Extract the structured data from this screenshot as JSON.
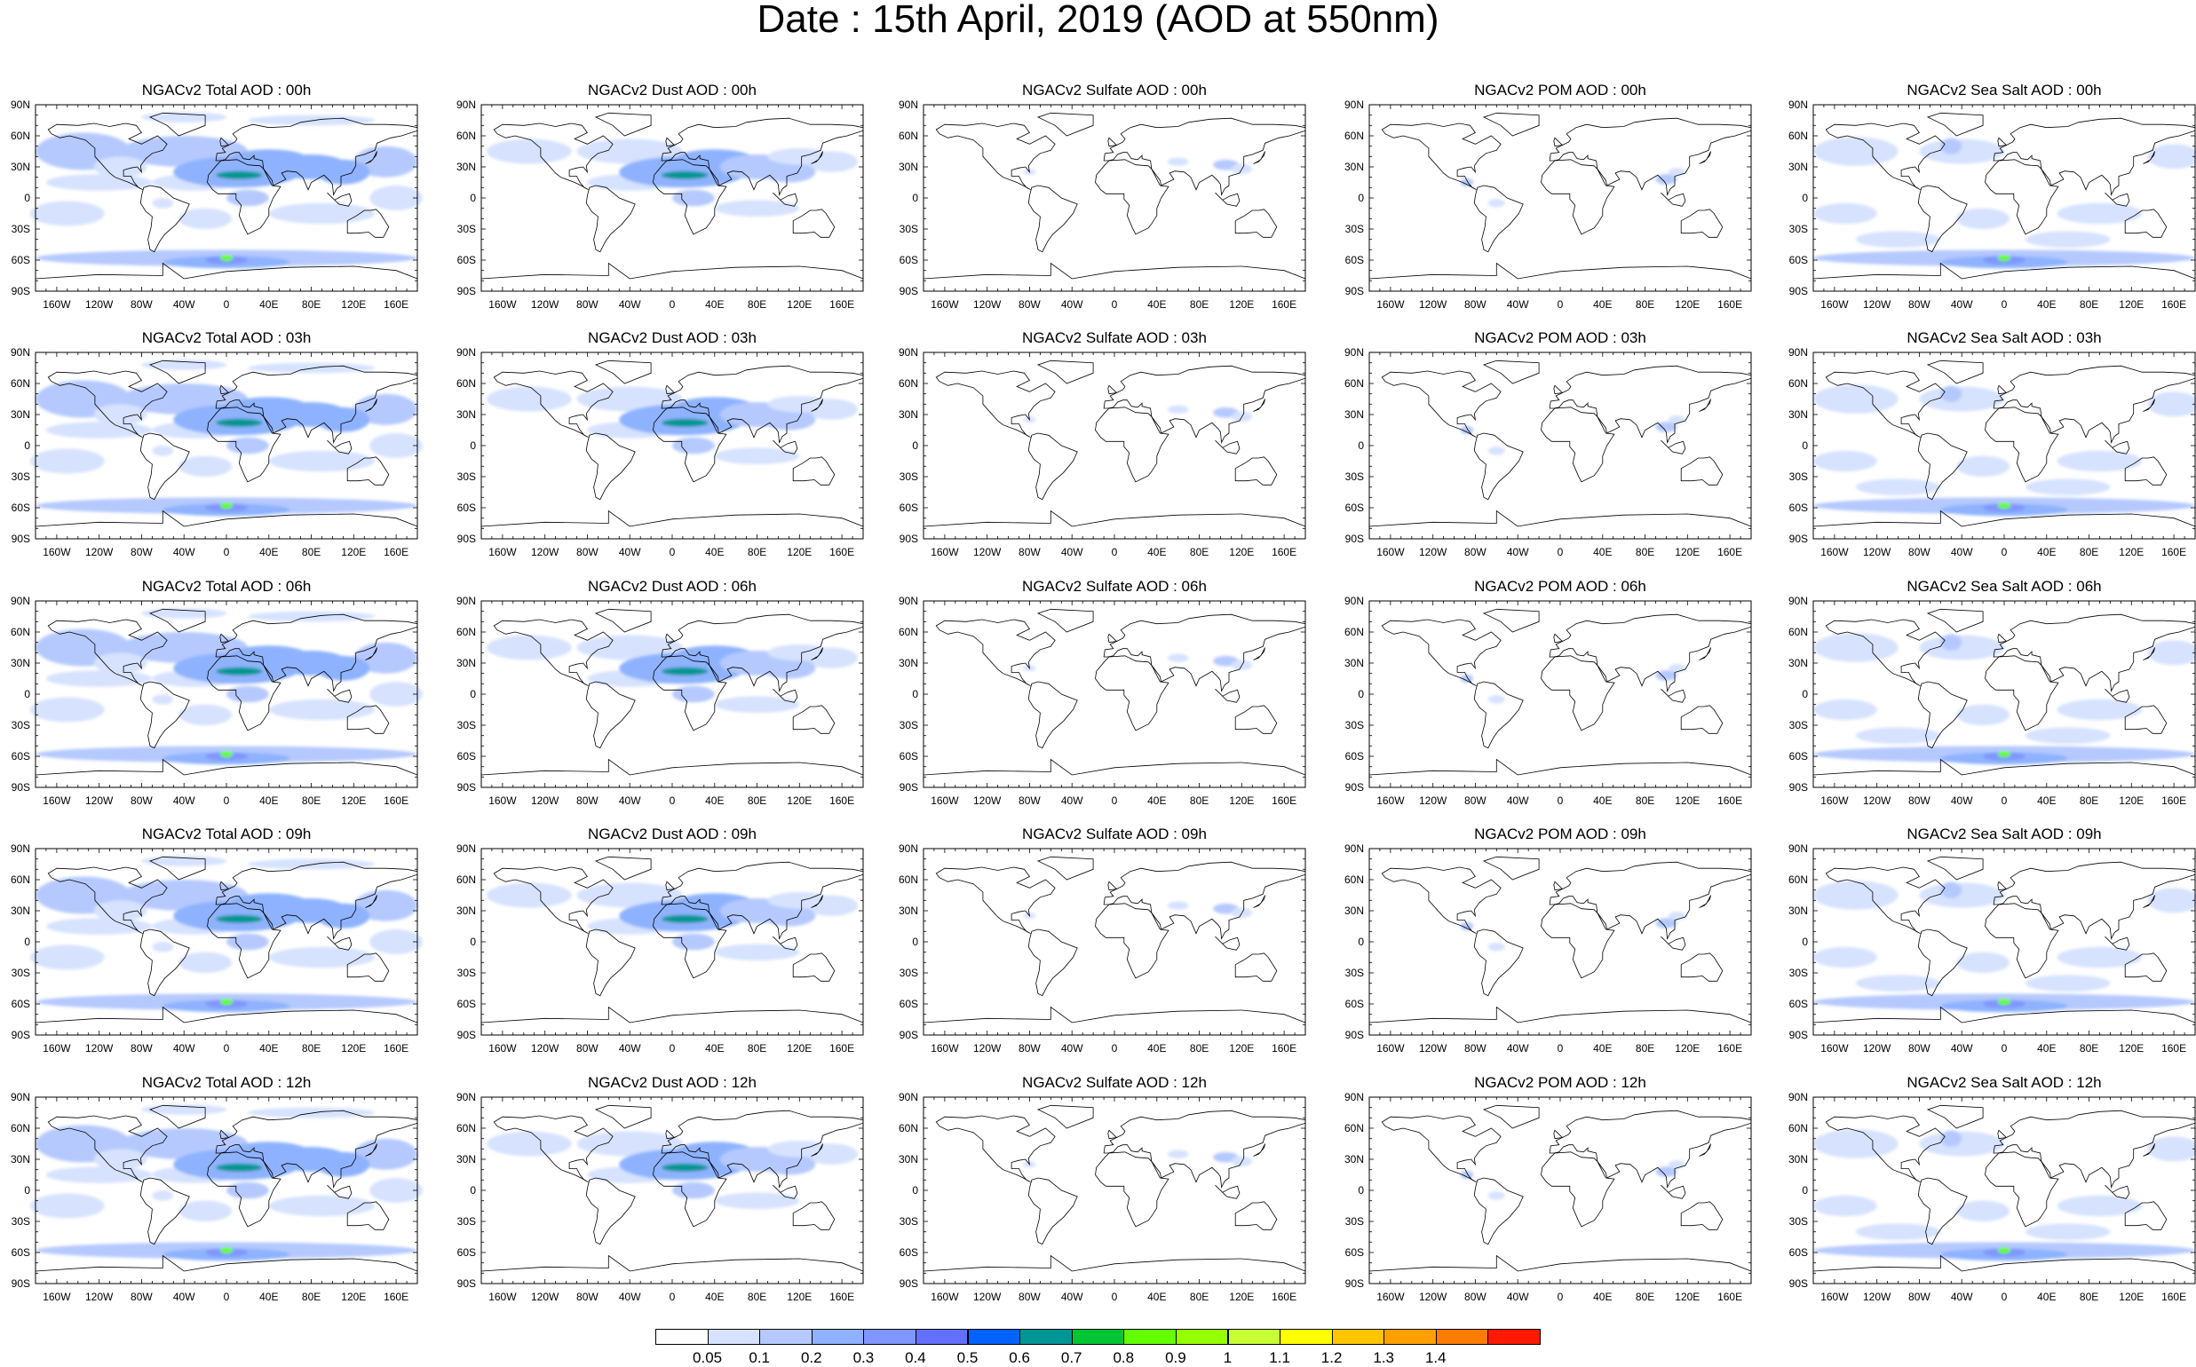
{
  "title": "Date : 15th April, 2019 (AOD at 550nm)",
  "lat_labels": [
    "90N",
    "60N",
    "30N",
    "0",
    "30S",
    "60S",
    "90S"
  ],
  "lon_labels": [
    "160W",
    "120W",
    "80W",
    "40W",
    "0",
    "40E",
    "80E",
    "120E",
    "160E"
  ],
  "rows": [
    {
      "hour": "00h",
      "titles": [
        "NGACv2 Total AOD : 00h",
        "NGACv2 Dust AOD : 00h",
        "NGACv2 Sulfate AOD : 00h",
        "NGACv2 POM AOD : 00h",
        "NGACv2 Sea Salt AOD : 00h"
      ]
    },
    {
      "hour": "03h",
      "titles": [
        "NGACv2 Total AOD : 03h",
        "NGACv2 Dust AOD : 03h",
        "NGACv2 Sulfate AOD : 03h",
        "NGACv2 POM AOD : 03h",
        "NGACv2 Sea Salt AOD : 03h"
      ]
    },
    {
      "hour": "06h",
      "titles": [
        "NGACv2 Total AOD : 06h",
        "NGACv2 Dust AOD : 06h",
        "NGACv2 Sulfate AOD : 06h",
        "NGACv2 POM AOD : 06h",
        "NGACv2 Sea Salt AOD : 06h"
      ]
    },
    {
      "hour": "09h",
      "titles": [
        "NGACv2 Total AOD : 09h",
        "NGACv2 Dust AOD : 09h",
        "NGACv2 Sulfate AOD : 09h",
        "NGACv2 POM AOD : 09h",
        "NGACv2 Sea Salt  AOD : 09h"
      ]
    },
    {
      "hour": "12h",
      "titles": [
        "NGACv2 Total AOD  : 12h",
        "NGACv2 Dust AOD : 12h",
        "NGACv2 Sulfate AOD : 12h",
        "NGACv2 POM  AOD : 12h",
        "NGACv2 Sea Salt  AOD : 12h"
      ]
    }
  ],
  "species": [
    "total",
    "dust",
    "sulfate",
    "pom",
    "seasalt"
  ],
  "colorbar": {
    "colors": [
      "#ffffff",
      "#d6e2ff",
      "#b5c9ff",
      "#8eb2ff",
      "#7f96ff",
      "#6370ff",
      "#0063ff",
      "#009696",
      "#00c633",
      "#63ff00",
      "#96ff00",
      "#c6ff33",
      "#ffff00",
      "#ffc600",
      "#ffa000",
      "#ff7c00",
      "#ff1900"
    ],
    "ticks": [
      "0.05",
      "0.1",
      "0.2",
      "0.3",
      "0.4",
      "0.5",
      "0.6",
      "0.7",
      "0.8",
      "0.9",
      "1",
      "1.1",
      "1.2",
      "1.3",
      "1.4"
    ]
  }
}
